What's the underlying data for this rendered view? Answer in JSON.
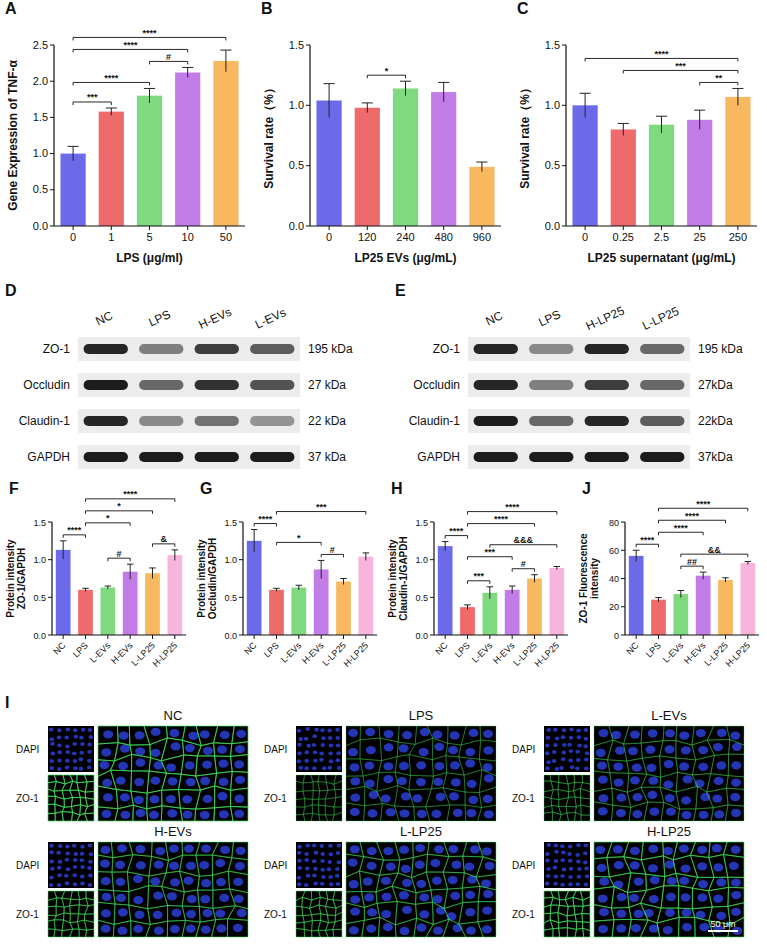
{
  "chart_data": [
    {
      "type": "bar",
      "title": "A",
      "categories": [
        "0",
        "1",
        "5",
        "10",
        "50"
      ],
      "values": [
        1.0,
        1.58,
        1.8,
        2.12,
        2.28
      ],
      "errors": [
        0.1,
        0.05,
        0.1,
        0.07,
        0.15
      ],
      "colors": [
        "#6b6bea",
        "#ef6a6a",
        "#7fd97f",
        "#c27ce8",
        "#f7b860"
      ],
      "x_label": "LPS (μg/ml)",
      "y_label": "Gene Expression of TNF-α",
      "ylim": [
        0,
        2.5
      ],
      "yticks": [
        {
          "value": 0,
          "label": "0.0"
        },
        {
          "value": 0.5,
          "label": "0.5"
        },
        {
          "value": 1,
          "label": "1.0"
        },
        {
          "value": 1.5,
          "label": "1.5"
        },
        {
          "value": 2,
          "label": "2.0"
        },
        {
          "value": 2.5,
          "label": "2.5"
        }
      ],
      "annotations": [
        {
          "between": [
            "0",
            "1"
          ],
          "text": "***"
        },
        {
          "between": [
            "0",
            "5"
          ],
          "text": "****"
        },
        {
          "between": [
            "0",
            "10"
          ],
          "text": "****"
        },
        {
          "between": [
            "0",
            "50"
          ],
          "text": "****"
        },
        {
          "between": [
            "5",
            "10"
          ],
          "text": "#"
        }
      ]
    },
    {
      "type": "bar",
      "title": "B",
      "categories": [
        "0",
        "120",
        "240",
        "480",
        "960"
      ],
      "values": [
        1.04,
        0.98,
        1.14,
        1.11,
        0.49
      ],
      "errors": [
        0.14,
        0.04,
        0.06,
        0.08,
        0.04
      ],
      "colors": [
        "#6b6bea",
        "#ef6a6a",
        "#7fd97f",
        "#c27ce8",
        "#f7b860"
      ],
      "x_label": "LP25 EVs (μg/mL)",
      "y_label": "Survival rate（%）",
      "ylim": [
        0,
        1.5
      ],
      "yticks": [
        {
          "value": 0,
          "label": "0.0"
        },
        {
          "value": 0.5,
          "label": "0.5"
        },
        {
          "value": 1,
          "label": "1.0"
        },
        {
          "value": 1.5,
          "label": "1.5"
        }
      ],
      "annotations": [
        {
          "between": [
            "120",
            "240"
          ],
          "text": "*"
        }
      ]
    },
    {
      "type": "bar",
      "title": "C",
      "categories": [
        "0",
        "0.25",
        "2.5",
        "25",
        "250"
      ],
      "values": [
        1.0,
        0.8,
        0.84,
        0.88,
        1.07
      ],
      "errors": [
        0.1,
        0.05,
        0.07,
        0.08,
        0.07
      ],
      "colors": [
        "#6b6bea",
        "#ef6a6a",
        "#7fd97f",
        "#c27ce8",
        "#f7b860"
      ],
      "x_label": "LP25 supernatant (μg/mL)",
      "y_label": "Survival rate（%）",
      "ylim": [
        0,
        1.5
      ],
      "yticks": [
        {
          "value": 0,
          "label": "0.0"
        },
        {
          "value": 0.5,
          "label": "0.5"
        },
        {
          "value": 1,
          "label": "1.0"
        },
        {
          "value": 1.5,
          "label": "1.5"
        }
      ],
      "annotations": [
        {
          "between": [
            "0",
            "250"
          ],
          "text": "****"
        },
        {
          "between": [
            "0.25",
            "250"
          ],
          "text": "***"
        },
        {
          "between": [
            "25",
            "250"
          ],
          "text": "**"
        }
      ]
    },
    {
      "type": "bar",
      "title": "F",
      "categories": [
        "NC",
        "LPS",
        "L-EVs",
        "H-EVs",
        "L-LP25",
        "H-LP25"
      ],
      "values": [
        1.13,
        0.6,
        0.63,
        0.84,
        0.82,
        1.06
      ],
      "errors": [
        0.12,
        0.02,
        0.02,
        0.1,
        0.07,
        0.07
      ],
      "colors": [
        "#6b6bea",
        "#ef6a6a",
        "#7fd97f",
        "#c27ce8",
        "#f7b860",
        "#f7b5dc"
      ],
      "y_label": "Protein intensity ZO-1/GAPDH",
      "ylim": [
        0,
        1.5
      ],
      "yticks": [
        {
          "value": 0,
          "label": "0.0"
        },
        {
          "value": 0.5,
          "label": "0.5"
        },
        {
          "value": 1,
          "label": "1.0"
        },
        {
          "value": 1.5,
          "label": "1.5"
        }
      ],
      "annotations": [
        {
          "between": [
            "NC",
            "LPS"
          ],
          "text": "****"
        },
        {
          "between": [
            "LPS",
            "H-LP25"
          ],
          "text": "****"
        },
        {
          "between": [
            "LPS",
            "H-EVs"
          ],
          "text": "*"
        },
        {
          "between": [
            "LPS",
            "L-LP25"
          ],
          "text": "*"
        },
        {
          "between": [
            "L-EVs",
            "H-EVs"
          ],
          "text": "#"
        },
        {
          "between": [
            "L-LP25",
            "H-LP25"
          ],
          "text": "&"
        }
      ]
    },
    {
      "type": "bar",
      "title": "G",
      "categories": [
        "NC",
        "LPS",
        "L-EVs",
        "H-EVs",
        "L-LP25",
        "H-LP25"
      ],
      "values": [
        1.25,
        0.6,
        0.63,
        0.87,
        0.71,
        1.04
      ],
      "errors": [
        0.15,
        0.02,
        0.03,
        0.12,
        0.04,
        0.05
      ],
      "colors": [
        "#6b6bea",
        "#ef6a6a",
        "#7fd97f",
        "#c27ce8",
        "#f7b860",
        "#f7b5dc"
      ],
      "y_label": "Protein intensity Occludin/GAPDH",
      "ylim": [
        0,
        1.5
      ],
      "yticks": [
        {
          "value": 0,
          "label": "0.0"
        },
        {
          "value": 0.5,
          "label": "0.5"
        },
        {
          "value": 1,
          "label": "1.0"
        },
        {
          "value": 1.5,
          "label": "1.5"
        }
      ],
      "annotations": [
        {
          "between": [
            "NC",
            "LPS"
          ],
          "text": "****"
        },
        {
          "between": [
            "LPS",
            "H-LP25"
          ],
          "text": "***"
        },
        {
          "between": [
            "LPS",
            "H-EVs"
          ],
          "text": "*"
        },
        {
          "between": [
            "H-EVs",
            "L-LP25"
          ],
          "text": "#"
        }
      ]
    },
    {
      "type": "bar",
      "title": "H",
      "categories": [
        "NC",
        "LPS",
        "L-EVs",
        "H-EVs",
        "L-LP25",
        "H-LP25"
      ],
      "values": [
        1.18,
        0.37,
        0.56,
        0.6,
        0.75,
        0.89
      ],
      "errors": [
        0.06,
        0.03,
        0.08,
        0.05,
        0.05,
        0.02
      ],
      "colors": [
        "#6b6bea",
        "#ef6a6a",
        "#7fd97f",
        "#c27ce8",
        "#f7b860",
        "#f7b5dc"
      ],
      "y_label": "Protein intensity Claudin-1/GAPDH",
      "ylim": [
        0,
        1.5
      ],
      "yticks": [
        {
          "value": 0,
          "label": "0.0"
        },
        {
          "value": 0.5,
          "label": "0.5"
        },
        {
          "value": 1,
          "label": "1.0"
        },
        {
          "value": 1.5,
          "label": "1.5"
        }
      ],
      "annotations": [
        {
          "between": [
            "NC",
            "LPS"
          ],
          "text": "****"
        },
        {
          "between": [
            "LPS",
            "L-EVs"
          ],
          "text": "***"
        },
        {
          "between": [
            "LPS",
            "H-EVs"
          ],
          "text": "***"
        },
        {
          "between": [
            "LPS",
            "L-LP25"
          ],
          "text": "****"
        },
        {
          "between": [
            "LPS",
            "H-LP25"
          ],
          "text": "****"
        },
        {
          "between": [
            "H-EVs",
            "L-LP25"
          ],
          "text": "#"
        },
        {
          "between": [
            "L-EVs",
            "H-LP25"
          ],
          "text": "&&&"
        }
      ]
    },
    {
      "type": "bar",
      "title": "J",
      "categories": [
        "NC",
        "LPS",
        "L-EVs",
        "H-EVs",
        "L-LP25",
        "H-LP25"
      ],
      "values": [
        56,
        25,
        29,
        42,
        39,
        51
      ],
      "errors": [
        4,
        1.5,
        2.5,
        2.5,
        1.5,
        1
      ],
      "colors": [
        "#6b6bea",
        "#ef6a6a",
        "#7fd97f",
        "#c27ce8",
        "#f7b860",
        "#f7b5dc"
      ],
      "y_label": "ZO-1 Fluorescence intensity",
      "ylim": [
        0,
        80
      ],
      "yticks": [
        0,
        20,
        40,
        60,
        80
      ],
      "annotations": [
        {
          "between": [
            "NC",
            "LPS"
          ],
          "text": "****"
        },
        {
          "between": [
            "LPS",
            "H-EVs"
          ],
          "text": "****"
        },
        {
          "between": [
            "LPS",
            "L-LP25"
          ],
          "text": "****"
        },
        {
          "between": [
            "LPS",
            "H-LP25"
          ],
          "text": "****"
        },
        {
          "between": [
            "L-EVs",
            "H-EVs"
          ],
          "text": "##"
        },
        {
          "between": [
            "L-EVs",
            "H-LP25"
          ],
          "text": "&&"
        }
      ]
    }
  ],
  "blots": [
    {
      "panel": "D",
      "lanes": [
        "NC",
        "LPS",
        "H-EVs",
        "L-EVs"
      ],
      "rows": [
        {
          "protein": "ZO-1",
          "size": "195 kDa",
          "bands": [
            0.9,
            0.5,
            0.8,
            0.65
          ]
        },
        {
          "protein": "Occludin",
          "size": "27 kDa",
          "bands": [
            0.95,
            0.6,
            0.85,
            0.7
          ]
        },
        {
          "protein": "Claudin-1",
          "size": "22 kDa",
          "bands": [
            0.9,
            0.45,
            0.55,
            0.4
          ]
        },
        {
          "protein": "GAPDH",
          "size": "37 kDa",
          "bands": [
            0.95,
            0.95,
            0.95,
            0.95
          ]
        }
      ]
    },
    {
      "panel": "E",
      "lanes": [
        "NC",
        "LPS",
        "H-LP25",
        "L-LP25"
      ],
      "rows": [
        {
          "protein": "ZO-1",
          "size": "195 kDa",
          "bands": [
            0.9,
            0.45,
            0.9,
            0.6
          ]
        },
        {
          "protein": "Occludin",
          "size": "27kDa",
          "bands": [
            0.9,
            0.5,
            0.8,
            0.6
          ]
        },
        {
          "protein": "Claudin-1",
          "size": "22kDa",
          "bands": [
            0.95,
            0.6,
            0.9,
            0.65
          ]
        },
        {
          "protein": "GAPDH",
          "size": "37kDa",
          "bands": [
            0.95,
            0.95,
            0.95,
            0.95
          ]
        }
      ]
    }
  ],
  "micrographs": {
    "panel": "I",
    "channels": [
      "DAPI",
      "ZO-1"
    ],
    "groups": [
      "NC",
      "LPS",
      "L-EVs",
      "H-EVs",
      "L-LP25",
      "H-LP25"
    ],
    "scale_bar": "50 μm"
  }
}
